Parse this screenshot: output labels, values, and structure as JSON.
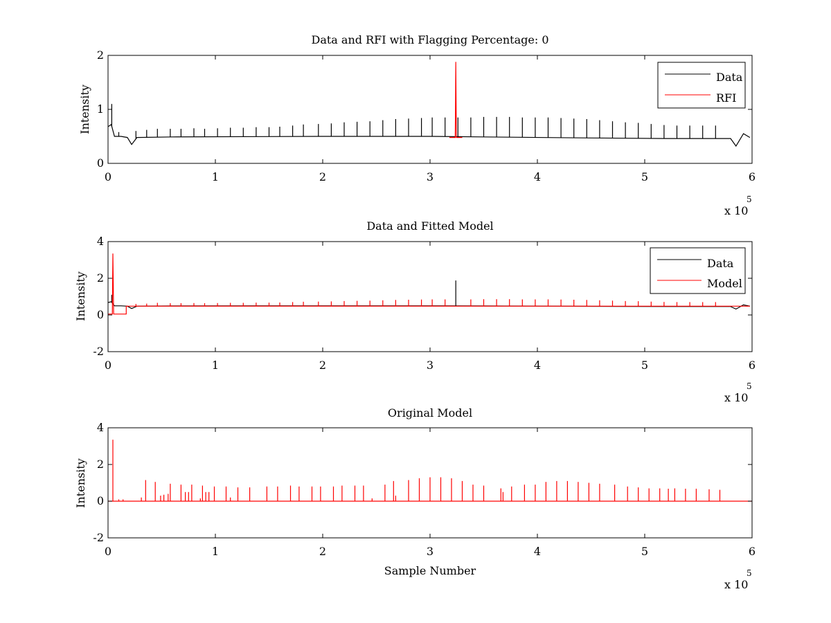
{
  "chart_data": [
    {
      "type": "line",
      "title": "Data and RFI with Flagging Percentage: 0",
      "xlabel": "",
      "ylabel": "Intensity",
      "xlim": [
        0,
        600000
      ],
      "ylim": [
        0,
        2
      ],
      "x_ticks": [
        0,
        1,
        2,
        3,
        4,
        5,
        6
      ],
      "y_ticks": [
        0,
        1,
        2
      ],
      "x_multiplier": {
        "base": "x 10",
        "exponent": "5"
      },
      "legend": {
        "position": "top-right",
        "entries": [
          {
            "name": "Data",
            "color": "#000000"
          },
          {
            "name": "RFI",
            "color": "#ff0000"
          }
        ]
      },
      "series": [
        {
          "name": "Data",
          "color": "#000000",
          "baseline": [
            [
              0,
              0.68
            ],
            [
              3000,
              0.72
            ],
            [
              6000,
              0.5
            ],
            [
              12000,
              0.5
            ],
            [
              18000,
              0.48
            ],
            [
              22000,
              0.35
            ],
            [
              27000,
              0.48
            ],
            [
              60000,
              0.49
            ],
            [
              200000,
              0.5
            ],
            [
              300000,
              0.5
            ],
            [
              350000,
              0.49
            ],
            [
              450000,
              0.47
            ],
            [
              520000,
              0.46
            ],
            [
              580000,
              0.46
            ],
            [
              585000,
              0.32
            ],
            [
              592000,
              0.55
            ],
            [
              598000,
              0.48
            ]
          ],
          "spikes": [
            [
              3500,
              1.1
            ],
            [
              10000,
              0.58
            ],
            [
              26000,
              0.6
            ],
            [
              36000,
              0.62
            ],
            [
              46000,
              0.64
            ],
            [
              58000,
              0.64
            ],
            [
              68000,
              0.64
            ],
            [
              80000,
              0.65
            ],
            [
              90000,
              0.64
            ],
            [
              102000,
              0.65
            ],
            [
              114000,
              0.66
            ],
            [
              126000,
              0.66
            ],
            [
              138000,
              0.67
            ],
            [
              150000,
              0.67
            ],
            [
              160000,
              0.68
            ],
            [
              172000,
              0.7
            ],
            [
              182000,
              0.72
            ],
            [
              196000,
              0.73
            ],
            [
              208000,
              0.74
            ],
            [
              220000,
              0.76
            ],
            [
              232000,
              0.77
            ],
            [
              244000,
              0.78
            ],
            [
              256000,
              0.8
            ],
            [
              268000,
              0.82
            ],
            [
              280000,
              0.83
            ],
            [
              292000,
              0.84
            ],
            [
              302000,
              0.85
            ],
            [
              314000,
              0.85
            ],
            [
              326000,
              0.85
            ],
            [
              338000,
              0.85
            ],
            [
              350000,
              0.86
            ],
            [
              362000,
              0.86
            ],
            [
              374000,
              0.86
            ],
            [
              386000,
              0.85
            ],
            [
              398000,
              0.85
            ],
            [
              410000,
              0.85
            ],
            [
              422000,
              0.84
            ],
            [
              434000,
              0.83
            ],
            [
              446000,
              0.82
            ],
            [
              458000,
              0.8
            ],
            [
              470000,
              0.78
            ],
            [
              482000,
              0.76
            ],
            [
              494000,
              0.75
            ],
            [
              506000,
              0.73
            ],
            [
              518000,
              0.71
            ],
            [
              530000,
              0.7
            ],
            [
              542000,
              0.7
            ],
            [
              554000,
              0.7
            ],
            [
              566000,
              0.7
            ]
          ]
        },
        {
          "name": "RFI",
          "color": "#ff0000",
          "segment": [
            [
              318000,
              0.48
            ],
            [
              323500,
              0.48
            ],
            [
              324000,
              1.88
            ],
            [
              324500,
              0.48
            ],
            [
              330000,
              0.48
            ]
          ]
        }
      ]
    },
    {
      "type": "line",
      "title": "Data and Fitted Model",
      "xlabel": "",
      "ylabel": "Intensity",
      "xlim": [
        0,
        600000
      ],
      "ylim": [
        -2,
        4
      ],
      "x_ticks": [
        0,
        1,
        2,
        3,
        4,
        5,
        6
      ],
      "y_ticks": [
        -2,
        0,
        2,
        4
      ],
      "x_multiplier": {
        "base": "x 10",
        "exponent": "5"
      },
      "legend": {
        "position": "top-right",
        "entries": [
          {
            "name": "Data",
            "color": "#000000"
          },
          {
            "name": "Model",
            "color": "#ff0000"
          }
        ]
      },
      "series": [
        {
          "name": "Data",
          "color": "#000000",
          "baseline": [
            [
              0,
              0.68
            ],
            [
              3000,
              0.72
            ],
            [
              6000,
              0.5
            ],
            [
              12000,
              0.5
            ],
            [
              18000,
              0.48
            ],
            [
              22000,
              0.35
            ],
            [
              27000,
              0.48
            ],
            [
              60000,
              0.49
            ],
            [
              200000,
              0.5
            ],
            [
              300000,
              0.5
            ],
            [
              350000,
              0.49
            ],
            [
              450000,
              0.47
            ],
            [
              520000,
              0.46
            ],
            [
              580000,
              0.46
            ],
            [
              585000,
              0.32
            ],
            [
              592000,
              0.55
            ],
            [
              598000,
              0.48
            ]
          ],
          "spikes": [
            [
              3500,
              1.1
            ],
            [
              324000,
              1.88
            ]
          ]
        },
        {
          "name": "Model",
          "color": "#ff0000",
          "baseline": [
            [
              0,
              0.05
            ],
            [
              4000,
              0.05
            ],
            [
              4500,
              3.35
            ],
            [
              5200,
              0.05
            ],
            [
              17000,
              0.05
            ],
            [
              17000,
              0.48
            ],
            [
              598000,
              0.48
            ]
          ],
          "spikes": [
            [
              26000,
              0.6
            ],
            [
              36000,
              0.62
            ],
            [
              46000,
              0.66
            ],
            [
              58000,
              0.64
            ],
            [
              68000,
              0.64
            ],
            [
              80000,
              0.65
            ],
            [
              90000,
              0.64
            ],
            [
              102000,
              0.65
            ],
            [
              114000,
              0.66
            ],
            [
              126000,
              0.66
            ],
            [
              138000,
              0.67
            ],
            [
              150000,
              0.67
            ],
            [
              160000,
              0.68
            ],
            [
              172000,
              0.7
            ],
            [
              182000,
              0.72
            ],
            [
              196000,
              0.73
            ],
            [
              208000,
              0.74
            ],
            [
              220000,
              0.76
            ],
            [
              232000,
              0.77
            ],
            [
              244000,
              0.78
            ],
            [
              256000,
              0.8
            ],
            [
              268000,
              0.82
            ],
            [
              280000,
              0.83
            ],
            [
              292000,
              0.84
            ],
            [
              302000,
              0.85
            ],
            [
              314000,
              0.85
            ],
            [
              338000,
              0.85
            ],
            [
              350000,
              0.86
            ],
            [
              362000,
              0.86
            ],
            [
              374000,
              0.86
            ],
            [
              386000,
              0.85
            ],
            [
              398000,
              0.85
            ],
            [
              410000,
              0.85
            ],
            [
              422000,
              0.84
            ],
            [
              434000,
              0.83
            ],
            [
              446000,
              0.82
            ],
            [
              458000,
              0.8
            ],
            [
              470000,
              0.78
            ],
            [
              482000,
              0.76
            ],
            [
              494000,
              0.75
            ],
            [
              506000,
              0.73
            ],
            [
              518000,
              0.71
            ],
            [
              530000,
              0.7
            ],
            [
              542000,
              0.7
            ],
            [
              554000,
              0.7
            ],
            [
              566000,
              0.7
            ]
          ]
        }
      ]
    },
    {
      "type": "line",
      "title": "Original Model",
      "xlabel": "Sample Number",
      "ylabel": "Intensity",
      "xlim": [
        0,
        600000
      ],
      "ylim": [
        -2,
        4
      ],
      "x_ticks": [
        0,
        1,
        2,
        3,
        4,
        5,
        6
      ],
      "y_ticks": [
        -2,
        0,
        2,
        4
      ],
      "x_multiplier": {
        "base": "x 10",
        "exponent": "5"
      },
      "series": [
        {
          "name": "Original Model",
          "color": "#ff0000",
          "baseline": [
            [
              0,
              0.0
            ],
            [
              600000,
              0.0
            ]
          ],
          "spikes": [
            [
              4500,
              3.35
            ],
            [
              10000,
              0.1
            ],
            [
              14000,
              0.1
            ],
            [
              31000,
              0.2
            ],
            [
              35000,
              1.15
            ],
            [
              44000,
              1.05
            ],
            [
              49000,
              0.3
            ],
            [
              52000,
              0.35
            ],
            [
              56000,
              0.4
            ],
            [
              58000,
              0.95
            ],
            [
              68000,
              0.9
            ],
            [
              72000,
              0.5
            ],
            [
              75000,
              0.5
            ],
            [
              78000,
              0.9
            ],
            [
              86000,
              0.15
            ],
            [
              88000,
              0.85
            ],
            [
              91000,
              0.5
            ],
            [
              94000,
              0.5
            ],
            [
              99000,
              0.8
            ],
            [
              110000,
              0.8
            ],
            [
              114000,
              0.2
            ],
            [
              121000,
              0.75
            ],
            [
              132000,
              0.75
            ],
            [
              148000,
              0.8
            ],
            [
              158000,
              0.8
            ],
            [
              170000,
              0.85
            ],
            [
              178000,
              0.8
            ],
            [
              190000,
              0.8
            ],
            [
              198000,
              0.8
            ],
            [
              210000,
              0.8
            ],
            [
              218000,
              0.85
            ],
            [
              230000,
              0.85
            ],
            [
              238000,
              0.85
            ],
            [
              246000,
              0.15
            ],
            [
              258000,
              0.9
            ],
            [
              266000,
              1.1
            ],
            [
              268000,
              0.3
            ],
            [
              280000,
              1.15
            ],
            [
              290000,
              1.25
            ],
            [
              300000,
              1.3
            ],
            [
              310000,
              1.3
            ],
            [
              320000,
              1.25
            ],
            [
              330000,
              1.1
            ],
            [
              340000,
              0.9
            ],
            [
              350000,
              0.85
            ],
            [
              366000,
              0.7
            ],
            [
              368000,
              0.5
            ],
            [
              376000,
              0.8
            ],
            [
              388000,
              0.9
            ],
            [
              398000,
              0.9
            ],
            [
              408000,
              1.05
            ],
            [
              418000,
              1.1
            ],
            [
              428000,
              1.1
            ],
            [
              438000,
              1.05
            ],
            [
              448000,
              1.0
            ],
            [
              458000,
              0.95
            ],
            [
              472000,
              0.9
            ],
            [
              484000,
              0.8
            ],
            [
              494000,
              0.75
            ],
            [
              504000,
              0.7
            ],
            [
              514000,
              0.7
            ],
            [
              522000,
              0.68
            ],
            [
              528000,
              0.7
            ],
            [
              538000,
              0.68
            ],
            [
              548000,
              0.68
            ],
            [
              560000,
              0.65
            ],
            [
              570000,
              0.62
            ]
          ]
        }
      ]
    }
  ]
}
